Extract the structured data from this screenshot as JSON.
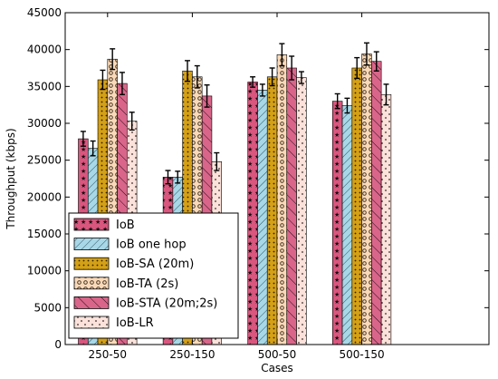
{
  "chart_data": {
    "type": "bar",
    "title": "",
    "xlabel": "Cases",
    "ylabel": "Throughput (kbps)",
    "ylim": [
      0,
      45000
    ],
    "yticks": [
      0,
      5000,
      10000,
      15000,
      20000,
      25000,
      30000,
      35000,
      40000,
      45000
    ],
    "categories": [
      "250-50",
      "250-150",
      "500-50",
      "500-150"
    ],
    "grid": false,
    "legend_position": "bottom-left",
    "series": [
      {
        "name": "IoB",
        "color": "#d9577f",
        "pattern": "stars",
        "values": [
          27900,
          22700,
          35600,
          33000
        ],
        "errors": [
          1000,
          900,
          700,
          1000
        ]
      },
      {
        "name": "IoB one hop",
        "color": "#a8d8e8",
        "pattern": "diagonal-lines",
        "values": [
          26600,
          22700,
          34500,
          32400
        ],
        "errors": [
          1000,
          800,
          800,
          1000
        ]
      },
      {
        "name": "IoB-SA (20m)",
        "color": "#d4a017",
        "pattern": "small-dots",
        "values": [
          35900,
          37100,
          36300,
          37500
        ],
        "errors": [
          1300,
          1400,
          1200,
          1400
        ]
      },
      {
        "name": "IoB-TA (2s)",
        "color": "#f9d9b8",
        "pattern": "circles",
        "values": [
          38700,
          36300,
          39300,
          39400
        ],
        "errors": [
          1400,
          1500,
          1500,
          1500
        ]
      },
      {
        "name": "IoB-STA (20m;2s)",
        "color": "#d9668a",
        "pattern": "back-diagonal-lines",
        "values": [
          35400,
          33700,
          37500,
          38400
        ],
        "errors": [
          1500,
          1500,
          1600,
          1300
        ]
      },
      {
        "name": "IoB-LR",
        "color": "#fbe2da",
        "pattern": "sparse-dots",
        "values": [
          30300,
          24800,
          36200,
          33900
        ],
        "errors": [
          1200,
          1200,
          800,
          1400
        ]
      }
    ]
  }
}
